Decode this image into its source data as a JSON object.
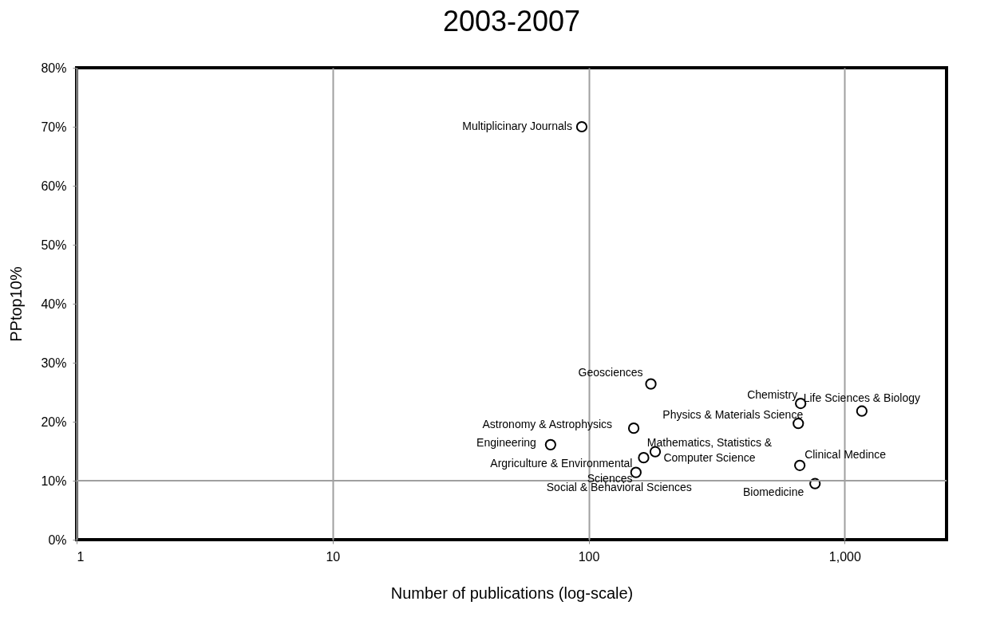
{
  "chart_data": {
    "type": "scatter",
    "title": "2003-2007",
    "xlabel": "Number of publications (log-scale)",
    "ylabel": "PPtop10%",
    "log": "x",
    "xlim": [
      1,
      2500
    ],
    "xticks": [
      1,
      10,
      100,
      {
        "value": 1000,
        "label": "1,000"
      }
    ],
    "ylim": [
      0,
      80
    ],
    "yticks": [
      {
        "value": 0,
        "label": "0%"
      },
      {
        "value": 10,
        "label": "10%"
      },
      {
        "value": 20,
        "label": "20%"
      },
      {
        "value": 30,
        "label": "30%"
      },
      {
        "value": 40,
        "label": "40%"
      },
      {
        "value": 50,
        "label": "50%"
      },
      {
        "value": 60,
        "label": "60%"
      },
      {
        "value": 70,
        "label": "70%"
      },
      {
        "value": 80,
        "label": "80%"
      }
    ],
    "grid": "x",
    "marker": "circle",
    "ref_lines": [
      {
        "axis": "y",
        "value": 10,
        "color": "#a0a0a0"
      }
    ],
    "series": [
      {
        "color": "#000000",
        "x": [
          94,
          175,
          673,
          1167,
          659,
          150,
          71,
          182,
          164,
          153,
          668,
          766
        ],
        "values": [
          70,
          26.4,
          23.1,
          21.8,
          19.7,
          18.9,
          16.1,
          14.9,
          13.9,
          11.4,
          12.6,
          9.5
        ]
      }
    ],
    "annotations": [
      {
        "text": "Multiplicinary Journals",
        "x": 94,
        "y": 70
      },
      {
        "text": "Geosciences",
        "x": 175,
        "y": 26.4
      },
      {
        "text": "Chemistry",
        "x": 673,
        "y": 23.1
      },
      {
        "text": "Life Sciences & Biology",
        "x": 1167,
        "y": 21.8
      },
      {
        "text": "Physics & Materials Science",
        "x": 659,
        "y": 19.7
      },
      {
        "text": "Astronomy & Astrophysics",
        "x": 150,
        "y": 18.9
      },
      {
        "text": "Engineering",
        "x": 71,
        "y": 16.1
      },
      {
        "text": "Mathematics, Statistics &\nComputer Science",
        "x": 182,
        "y": 14.9
      },
      {
        "text": "Argriculture & Environmental\nSciences",
        "x": 164,
        "y": 13.9
      },
      {
        "text": "Social & Behavioral Sciences",
        "x": 153,
        "y": 11.4
      },
      {
        "text": "Clinical Medince",
        "x": 668,
        "y": 12.6
      },
      {
        "text": "Biomedicine",
        "x": 766,
        "y": 9.5
      }
    ]
  }
}
